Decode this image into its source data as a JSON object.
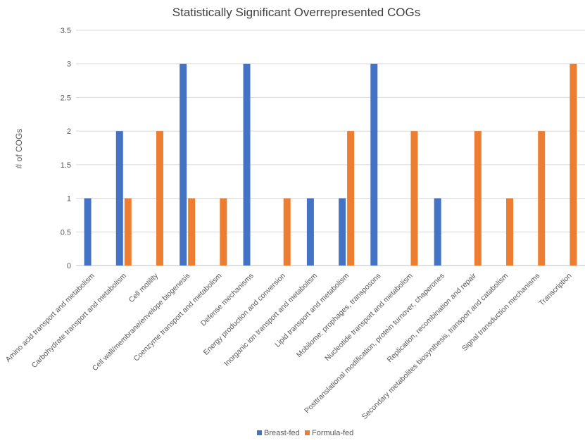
{
  "chart_data": {
    "type": "bar",
    "title": "Statistically Significant Overrepresented COGs",
    "ylabel": "# of COGs",
    "xlabel": "",
    "ylim": [
      0,
      3.5
    ],
    "yticks": [
      0,
      0.5,
      1,
      1.5,
      2,
      2.5,
      3,
      3.5
    ],
    "yticks_labels": [
      "0",
      "0.5",
      "1",
      "1.5",
      "2",
      "2.5",
      "3",
      "3.5"
    ],
    "grid": true,
    "legend": "bottom",
    "categories": [
      "Amino acid transport and metabolism",
      "Carbohydrate transport and metabolism",
      "Cell motility",
      "Cell wall/membrane/envelope biogenesis",
      "Coenzyme transport and metabolism",
      "Defense mechanisms",
      "Energy production and conversion",
      "Inorganic ion transport and metabolism",
      "Lipid transport and metabolism",
      "Mobilome: prophages, transposons",
      "Nucleotide transport and metabolism",
      "Posttranslational modification, protein turnover, chaperones",
      "Replication, recombination and repair",
      "Secondary metabolites biosynthesis, transport and catabolism",
      "Signal transduction mechanisms",
      "Transcription"
    ],
    "series": [
      {
        "name": "Breast-fed",
        "color": "#4472C4",
        "values": [
          1,
          2,
          0,
          3,
          0,
          3,
          0,
          1,
          1,
          3,
          0,
          1,
          0,
          0,
          0,
          0
        ]
      },
      {
        "name": "Formula-fed",
        "color": "#ED7D31",
        "values": [
          0,
          1,
          2,
          1,
          1,
          0,
          1,
          0,
          2,
          0,
          2,
          0,
          2,
          1,
          2,
          3
        ]
      }
    ]
  }
}
